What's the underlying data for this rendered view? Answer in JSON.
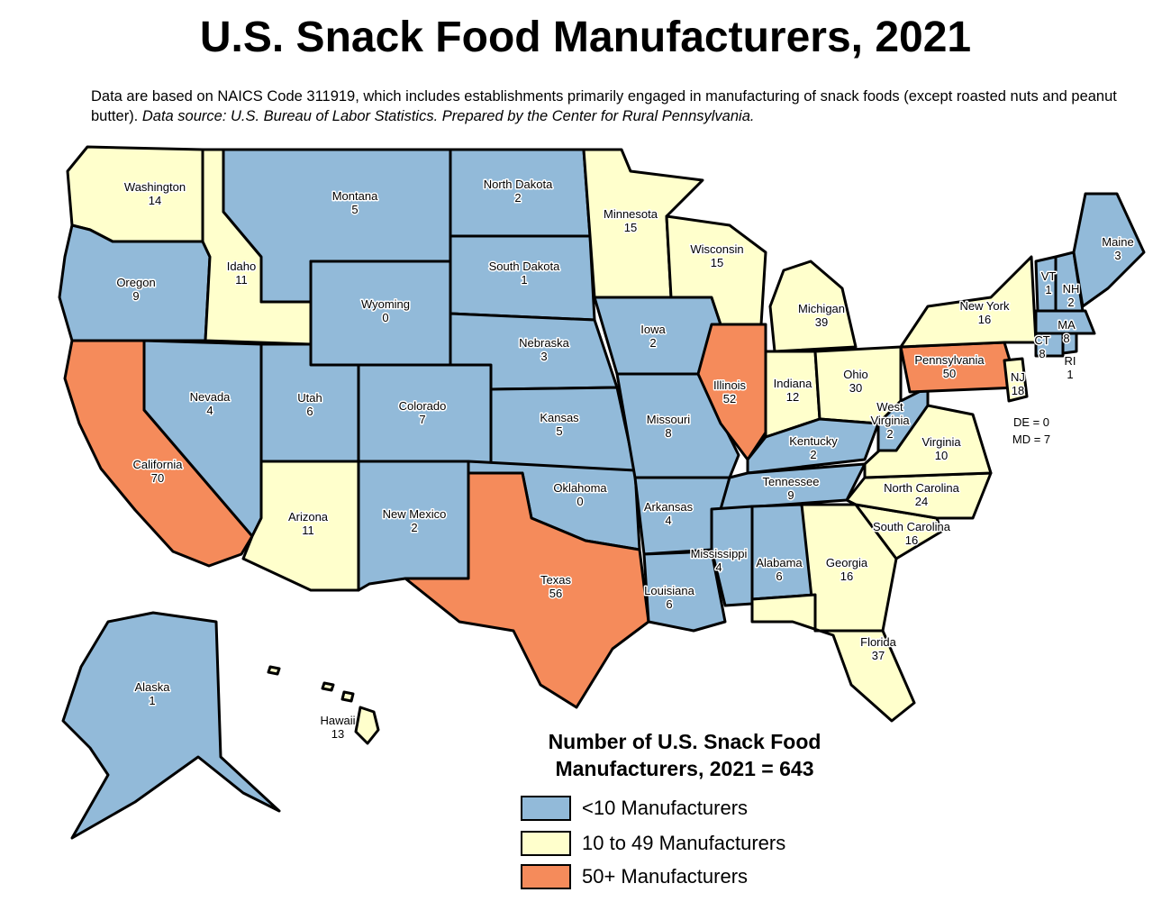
{
  "title": "U.S. Snack Food Manufacturers, 2021",
  "subtitle": {
    "text": "Data are based on NAICS Code 311919, which includes establishments primarily engaged in manufacturing of snack foods (except roasted nuts and peanut butter). ",
    "source": "Data source: U.S. Bureau of Labor Statistics. Prepared by the Center for Rural Pennsylvania."
  },
  "colors": {
    "low": "#92bad9",
    "mid": "#ffffcc",
    "high": "#f58b5b",
    "border": "#000000",
    "background": "#ffffff"
  },
  "legend": {
    "title_line1": "Number of U.S. Snack Food",
    "title_line2": "Manufacturers, 2021 = 643",
    "items": [
      {
        "label": "<10 Manufacturers",
        "class": "low"
      },
      {
        "label": "10 to 49 Manufacturers",
        "class": "mid"
      },
      {
        "label": "50+ Manufacturers",
        "class": "high"
      }
    ]
  },
  "states": [
    {
      "name": "Washington",
      "count": "14",
      "class": "mid"
    },
    {
      "name": "Oregon",
      "count": "9",
      "class": "low"
    },
    {
      "name": "California",
      "count": "70",
      "class": "high"
    },
    {
      "name": "Idaho",
      "count": "11",
      "class": "mid"
    },
    {
      "name": "Nevada",
      "count": "4",
      "class": "low"
    },
    {
      "name": "Montana",
      "count": "5",
      "class": "low"
    },
    {
      "name": "Wyoming",
      "count": "0",
      "class": "low"
    },
    {
      "name": "Utah",
      "count": "6",
      "class": "low"
    },
    {
      "name": "Arizona",
      "count": "11",
      "class": "mid"
    },
    {
      "name": "Colorado",
      "count": "7",
      "class": "low"
    },
    {
      "name": "New Mexico",
      "count": "2",
      "class": "low"
    },
    {
      "name": "North Dakota",
      "count": "2",
      "class": "low"
    },
    {
      "name": "South Dakota",
      "count": "1",
      "class": "low"
    },
    {
      "name": "Nebraska",
      "count": "3",
      "class": "low"
    },
    {
      "name": "Kansas",
      "count": "5",
      "class": "low"
    },
    {
      "name": "Oklahoma",
      "count": "0",
      "class": "low"
    },
    {
      "name": "Texas",
      "count": "56",
      "class": "high"
    },
    {
      "name": "Minnesota",
      "count": "15",
      "class": "mid"
    },
    {
      "name": "Iowa",
      "count": "2",
      "class": "low"
    },
    {
      "name": "Missouri",
      "count": "8",
      "class": "low"
    },
    {
      "name": "Arkansas",
      "count": "4",
      "class": "low"
    },
    {
      "name": "Louisiana",
      "count": "6",
      "class": "low"
    },
    {
      "name": "Wisconsin",
      "count": "15",
      "class": "mid"
    },
    {
      "name": "Illinois",
      "count": "52",
      "class": "high"
    },
    {
      "name": "Michigan",
      "count": "39",
      "class": "mid"
    },
    {
      "name": "Indiana",
      "count": "12",
      "class": "mid"
    },
    {
      "name": "Ohio",
      "count": "30",
      "class": "mid"
    },
    {
      "name": "Kentucky",
      "count": "2",
      "class": "low"
    },
    {
      "name": "Tennessee",
      "count": "9",
      "class": "low"
    },
    {
      "name": "Mississippi",
      "count": "4",
      "class": "low"
    },
    {
      "name": "Alabama",
      "count": "6",
      "class": "low"
    },
    {
      "name": "Georgia",
      "count": "16",
      "class": "mid"
    },
    {
      "name": "Florida",
      "count": "37",
      "class": "mid"
    },
    {
      "name": "South Carolina",
      "count": "16",
      "class": "mid"
    },
    {
      "name": "North Carolina",
      "count": "24",
      "class": "mid"
    },
    {
      "name": "Virginia",
      "count": "10",
      "class": "mid"
    },
    {
      "name": "West Virginia",
      "count": "2",
      "class": "low"
    },
    {
      "name": "Pennsylvania",
      "count": "50",
      "class": "high"
    },
    {
      "name": "New York",
      "count": "16",
      "class": "mid"
    },
    {
      "name": "NJ",
      "count": "18",
      "class": "mid"
    },
    {
      "name": "VT",
      "count": "1",
      "class": "low"
    },
    {
      "name": "NH",
      "count": "2",
      "class": "low"
    },
    {
      "name": "Maine",
      "count": "3",
      "class": "low"
    },
    {
      "name": "MA",
      "count": "8",
      "class": "low"
    },
    {
      "name": "CT",
      "count": "8",
      "class": "low"
    },
    {
      "name": "RI",
      "count": "1",
      "class": "low"
    },
    {
      "name": "Alaska",
      "count": "1",
      "class": "low"
    },
    {
      "name": "Hawaii",
      "count": "13",
      "class": "mid"
    }
  ],
  "callouts": {
    "de": "DE = 0",
    "md": "MD =  7"
  }
}
